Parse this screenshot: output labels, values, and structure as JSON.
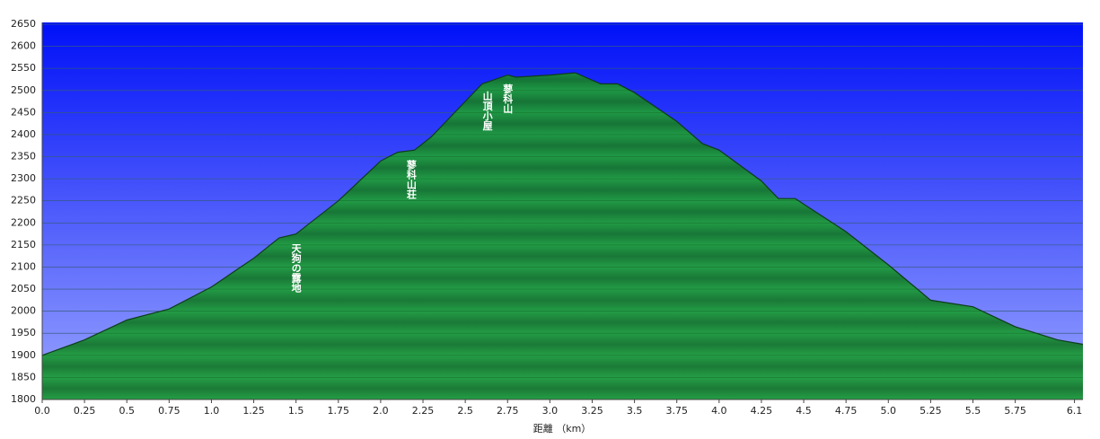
{
  "chart_data": {
    "type": "area",
    "x_label": "距離 （km）",
    "x": [
      0,
      0.25,
      0.5,
      0.75,
      1.0,
      1.25,
      1.4,
      1.5,
      1.75,
      2.0,
      2.1,
      2.2,
      2.3,
      2.5,
      2.6,
      2.75,
      2.8,
      3.0,
      3.15,
      3.3,
      3.4,
      3.5,
      3.75,
      3.9,
      4.0,
      4.25,
      4.35,
      4.45,
      4.75,
      5.0,
      5.25,
      5.5,
      5.75,
      6.0,
      6.15
    ],
    "series": [
      {
        "color": "#1f9e3c",
        "values": [
          1900,
          1935,
          1980,
          2005,
          2055,
          2120,
          2166,
          2175,
          2250,
          2340,
          2360,
          2365,
          2395,
          2475,
          2515,
          2535,
          2530,
          2535,
          2540,
          2515,
          2515,
          2495,
          2430,
          2380,
          2365,
          2295,
          2255,
          2255,
          2180,
          2105,
          2025,
          2010,
          1965,
          1935,
          1925
        ]
      }
    ],
    "annotations": [
      {
        "text": "天狗の露地",
        "x": 1.5
      },
      {
        "text": "蓼科山荘",
        "x": 2.18
      },
      {
        "text": "山頂小屋",
        "x": 2.63
      },
      {
        "text": "蓼科山",
        "x": 2.75
      }
    ],
    "xlim": [
      0,
      6.15
    ],
    "xticks": [
      {
        "value": 0,
        "label": "0.0"
      },
      0.25,
      0.5,
      0.75,
      {
        "value": 1,
        "label": "1.0"
      },
      1.25,
      1.5,
      1.75,
      {
        "value": 2,
        "label": "2.0"
      },
      2.25,
      2.5,
      2.75,
      {
        "value": 3,
        "label": "3.0"
      },
      3.25,
      3.5,
      3.75,
      {
        "value": 4,
        "label": "4.0"
      },
      4.25,
      4.5,
      4.75,
      {
        "value": 5,
        "label": "5.0"
      },
      5.25,
      5.5,
      5.75,
      6.1
    ],
    "ylim": [
      1800,
      2650
    ],
    "yticks": [
      1800,
      1850,
      1900,
      1950,
      2000,
      2050,
      2100,
      2150,
      2200,
      2250,
      2300,
      2350,
      2400,
      2450,
      2500,
      2550,
      2600,
      2650
    ],
    "grid": true
  }
}
